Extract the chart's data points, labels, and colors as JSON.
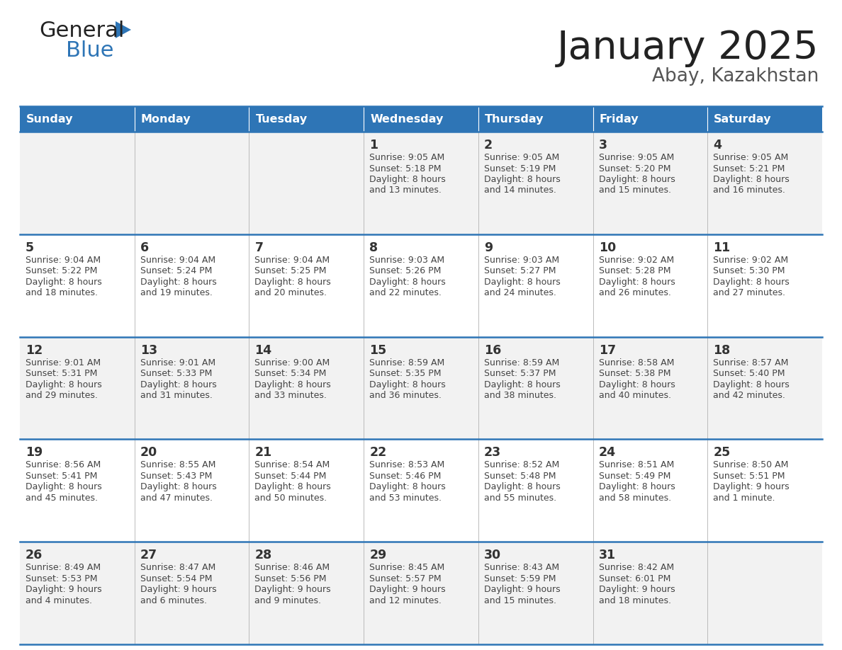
{
  "title": "January 2025",
  "subtitle": "Abay, Kazakhstan",
  "header_bg": "#2e75b6",
  "header_text_color": "#ffffff",
  "cell_bg_light": "#f2f2f2",
  "cell_bg_white": "#ffffff",
  "cell_text_color": "#333333",
  "day_number_color": "#333333",
  "border_color": "#2e75b6",
  "row_sep_color": "#2e75b6",
  "days_of_week": [
    "Sunday",
    "Monday",
    "Tuesday",
    "Wednesday",
    "Thursday",
    "Friday",
    "Saturday"
  ],
  "weeks": [
    [
      {
        "day": null,
        "info": null
      },
      {
        "day": null,
        "info": null
      },
      {
        "day": null,
        "info": null
      },
      {
        "day": 1,
        "info": "Sunrise: 9:05 AM\nSunset: 5:18 PM\nDaylight: 8 hours\nand 13 minutes."
      },
      {
        "day": 2,
        "info": "Sunrise: 9:05 AM\nSunset: 5:19 PM\nDaylight: 8 hours\nand 14 minutes."
      },
      {
        "day": 3,
        "info": "Sunrise: 9:05 AM\nSunset: 5:20 PM\nDaylight: 8 hours\nand 15 minutes."
      },
      {
        "day": 4,
        "info": "Sunrise: 9:05 AM\nSunset: 5:21 PM\nDaylight: 8 hours\nand 16 minutes."
      }
    ],
    [
      {
        "day": 5,
        "info": "Sunrise: 9:04 AM\nSunset: 5:22 PM\nDaylight: 8 hours\nand 18 minutes."
      },
      {
        "day": 6,
        "info": "Sunrise: 9:04 AM\nSunset: 5:24 PM\nDaylight: 8 hours\nand 19 minutes."
      },
      {
        "day": 7,
        "info": "Sunrise: 9:04 AM\nSunset: 5:25 PM\nDaylight: 8 hours\nand 20 minutes."
      },
      {
        "day": 8,
        "info": "Sunrise: 9:03 AM\nSunset: 5:26 PM\nDaylight: 8 hours\nand 22 minutes."
      },
      {
        "day": 9,
        "info": "Sunrise: 9:03 AM\nSunset: 5:27 PM\nDaylight: 8 hours\nand 24 minutes."
      },
      {
        "day": 10,
        "info": "Sunrise: 9:02 AM\nSunset: 5:28 PM\nDaylight: 8 hours\nand 26 minutes."
      },
      {
        "day": 11,
        "info": "Sunrise: 9:02 AM\nSunset: 5:30 PM\nDaylight: 8 hours\nand 27 minutes."
      }
    ],
    [
      {
        "day": 12,
        "info": "Sunrise: 9:01 AM\nSunset: 5:31 PM\nDaylight: 8 hours\nand 29 minutes."
      },
      {
        "day": 13,
        "info": "Sunrise: 9:01 AM\nSunset: 5:33 PM\nDaylight: 8 hours\nand 31 minutes."
      },
      {
        "day": 14,
        "info": "Sunrise: 9:00 AM\nSunset: 5:34 PM\nDaylight: 8 hours\nand 33 minutes."
      },
      {
        "day": 15,
        "info": "Sunrise: 8:59 AM\nSunset: 5:35 PM\nDaylight: 8 hours\nand 36 minutes."
      },
      {
        "day": 16,
        "info": "Sunrise: 8:59 AM\nSunset: 5:37 PM\nDaylight: 8 hours\nand 38 minutes."
      },
      {
        "day": 17,
        "info": "Sunrise: 8:58 AM\nSunset: 5:38 PM\nDaylight: 8 hours\nand 40 minutes."
      },
      {
        "day": 18,
        "info": "Sunrise: 8:57 AM\nSunset: 5:40 PM\nDaylight: 8 hours\nand 42 minutes."
      }
    ],
    [
      {
        "day": 19,
        "info": "Sunrise: 8:56 AM\nSunset: 5:41 PM\nDaylight: 8 hours\nand 45 minutes."
      },
      {
        "day": 20,
        "info": "Sunrise: 8:55 AM\nSunset: 5:43 PM\nDaylight: 8 hours\nand 47 minutes."
      },
      {
        "day": 21,
        "info": "Sunrise: 8:54 AM\nSunset: 5:44 PM\nDaylight: 8 hours\nand 50 minutes."
      },
      {
        "day": 22,
        "info": "Sunrise: 8:53 AM\nSunset: 5:46 PM\nDaylight: 8 hours\nand 53 minutes."
      },
      {
        "day": 23,
        "info": "Sunrise: 8:52 AM\nSunset: 5:48 PM\nDaylight: 8 hours\nand 55 minutes."
      },
      {
        "day": 24,
        "info": "Sunrise: 8:51 AM\nSunset: 5:49 PM\nDaylight: 8 hours\nand 58 minutes."
      },
      {
        "day": 25,
        "info": "Sunrise: 8:50 AM\nSunset: 5:51 PM\nDaylight: 9 hours\nand 1 minute."
      }
    ],
    [
      {
        "day": 26,
        "info": "Sunrise: 8:49 AM\nSunset: 5:53 PM\nDaylight: 9 hours\nand 4 minutes."
      },
      {
        "day": 27,
        "info": "Sunrise: 8:47 AM\nSunset: 5:54 PM\nDaylight: 9 hours\nand 6 minutes."
      },
      {
        "day": 28,
        "info": "Sunrise: 8:46 AM\nSunset: 5:56 PM\nDaylight: 9 hours\nand 9 minutes."
      },
      {
        "day": 29,
        "info": "Sunrise: 8:45 AM\nSunset: 5:57 PM\nDaylight: 9 hours\nand 12 minutes."
      },
      {
        "day": 30,
        "info": "Sunrise: 8:43 AM\nSunset: 5:59 PM\nDaylight: 9 hours\nand 15 minutes."
      },
      {
        "day": 31,
        "info": "Sunrise: 8:42 AM\nSunset: 6:01 PM\nDaylight: 9 hours\nand 18 minutes."
      },
      {
        "day": null,
        "info": null
      }
    ]
  ]
}
